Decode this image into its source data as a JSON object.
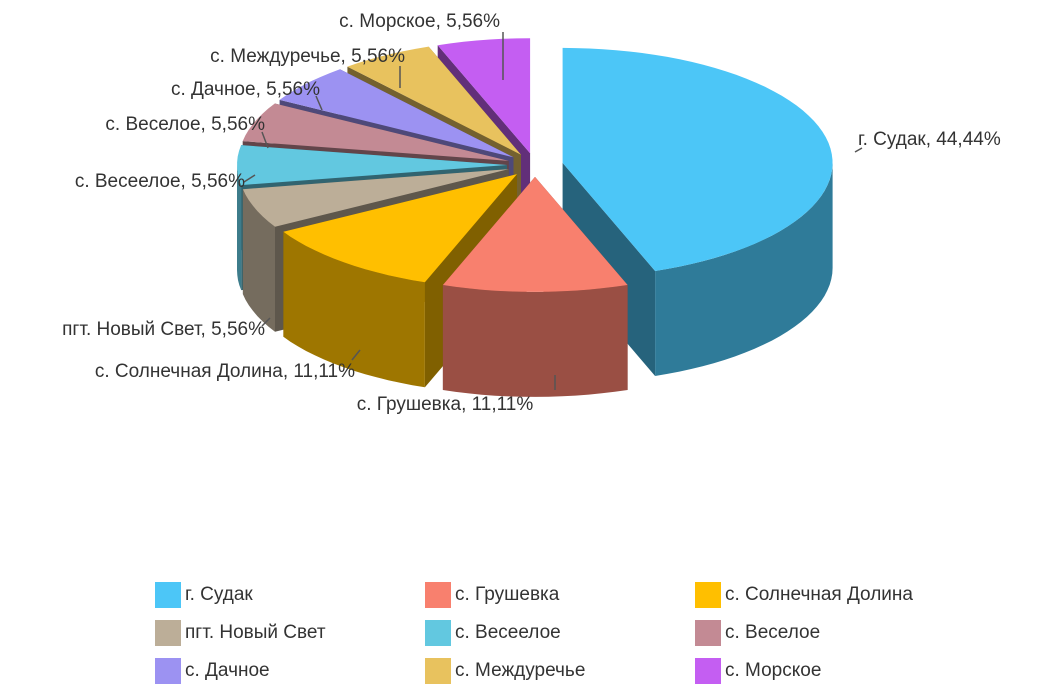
{
  "chart_data": {
    "type": "pie3d",
    "categories": [
      "г. Судак",
      "с. Грушевка",
      "с. Солнечная Долина",
      "пгт. Новый Свет",
      "с. Весеелое",
      "с. Веселое",
      "с. Дачное",
      "с. Междуречье",
      "с. Морское"
    ],
    "values": [
      44.44,
      11.11,
      11.11,
      5.56,
      5.56,
      5.56,
      5.56,
      5.56,
      5.56
    ],
    "value_labels": [
      "г. Судак, 44,44%",
      "с. Грушевка, 11,11%",
      "с. Солнечная Долина, 11,11%",
      "пгт. Новый Свет, 5,56%",
      "с. Весеелое, 5,56%",
      "с. Веселое, 5,56%",
      "с. Дачное, 5,56%",
      "с. Междуречье, 5,56%",
      "с. Морское, 5,56%"
    ],
    "colors": [
      "#4cc6f7",
      "#f8806e",
      "#ffbf00",
      "#bcae98",
      "#62c8e0",
      "#c38a94",
      "#9c92f2",
      "#e8c25e",
      "#c45ef2"
    ],
    "legend": "bottom"
  }
}
